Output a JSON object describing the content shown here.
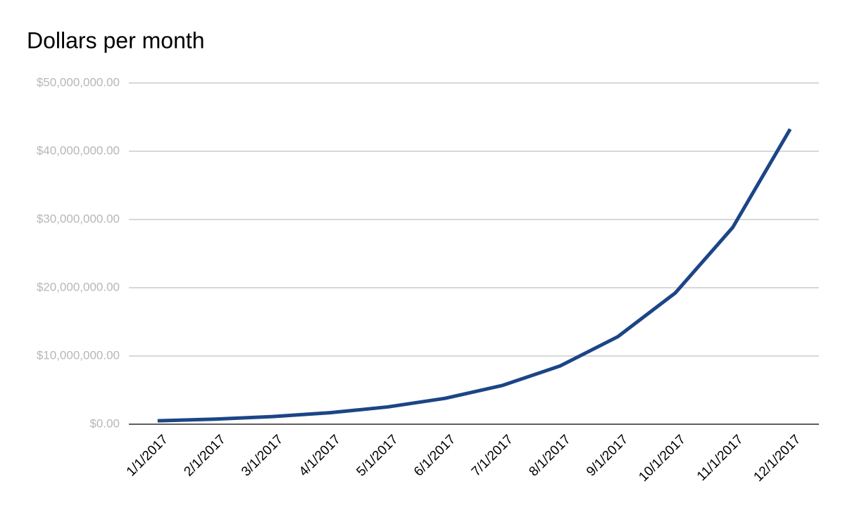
{
  "chart_data": {
    "type": "line",
    "title": "Dollars per month",
    "categories": [
      "1/1/2017",
      "2/1/2017",
      "3/1/2017",
      "4/1/2017",
      "5/1/2017",
      "6/1/2017",
      "7/1/2017",
      "8/1/2017",
      "9/1/2017",
      "10/1/2017",
      "11/1/2017",
      "12/1/2017"
    ],
    "series": [
      {
        "name": "Dollars",
        "color": "#1c4587",
        "values": [
          500000,
          750000,
          1125000,
          1687500,
          2531250,
          3796875,
          5695313,
          8542969,
          12814453,
          19221680,
          28832520,
          43248779
        ]
      }
    ],
    "ylim": [
      0,
      50000000
    ],
    "yticks": [
      {
        "value": 0,
        "label": "$0.00"
      },
      {
        "value": 10000000,
        "label": "$10,000,000.00"
      },
      {
        "value": 20000000,
        "label": "$20,000,000.00"
      },
      {
        "value": 30000000,
        "label": "$30,000,000.00"
      },
      {
        "value": 40000000,
        "label": "$40,000,000.00"
      },
      {
        "value": 50000000,
        "label": "$50,000,000.00"
      }
    ],
    "grid": true
  }
}
